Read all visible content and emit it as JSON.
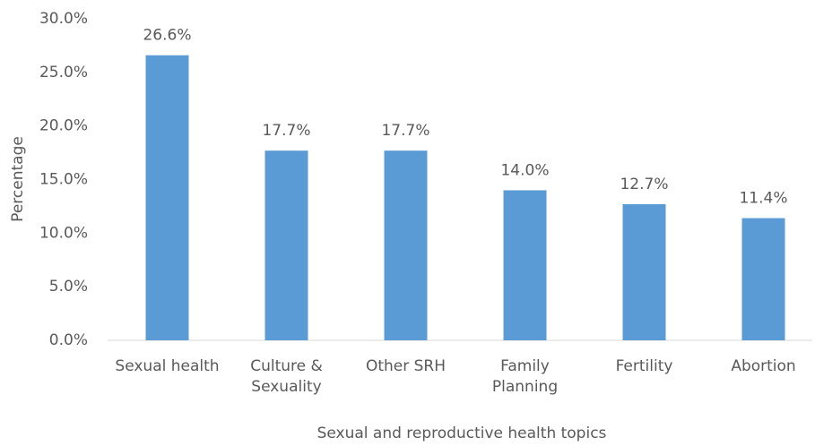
{
  "chart_data": {
    "type": "bar",
    "x_label": "Sexual and reproductive health  topics",
    "y_label": "Percentage",
    "categories": [
      "Sexual health",
      "Culture &\nSexuality",
      "Other SRH",
      "Family\nPlanning",
      "Fertility",
      "Abortion"
    ],
    "values": [
      26.6,
      17.7,
      17.7,
      14.0,
      12.7,
      11.4
    ],
    "value_labels": [
      "26.6%",
      "17.7%",
      "17.7%",
      "14.0%",
      "12.7%",
      "11.4%"
    ],
    "color": "#5b9bd5",
    "ylim": [
      0,
      30
    ],
    "yticks": [
      {
        "value": 0,
        "label": "0.0%"
      },
      {
        "value": 5,
        "label": "5.0%"
      },
      {
        "value": 10,
        "label": "10.0%"
      },
      {
        "value": 15,
        "label": "15.0%"
      },
      {
        "value": 20,
        "label": "20.0%"
      },
      {
        "value": 25,
        "label": "25.0%"
      },
      {
        "value": 30,
        "label": "30.0%"
      }
    ],
    "grid": false
  }
}
